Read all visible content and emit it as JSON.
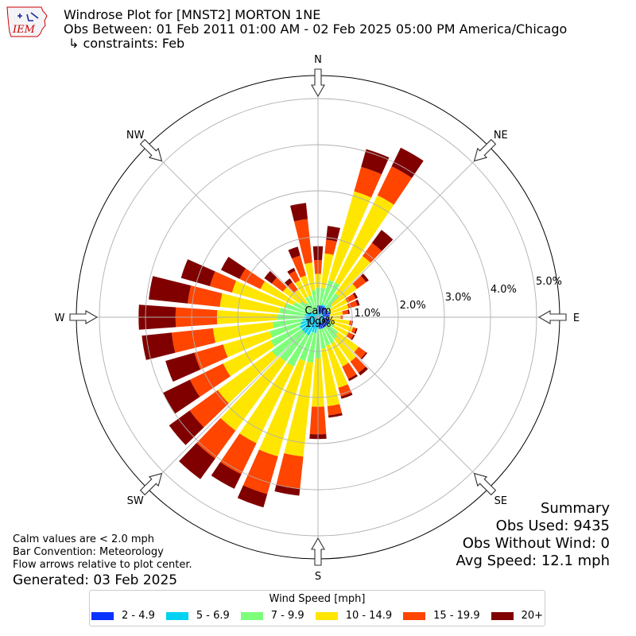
{
  "header": {
    "title": "Windrose Plot for [MNST2] MORTON 1NE",
    "subtitle": "Obs Between: 01 Feb 2011 01:00 AM - 02 Feb 2025 05:00 PM America/Chicago",
    "constraints": "↳ constraints: Feb",
    "logo_text": "IEM"
  },
  "notes": {
    "line1": "Calm values are < 2.0 mph",
    "line2": "Bar Convention: Meteorology",
    "line3": "Flow arrows relative to plot center.",
    "generated": "Generated: 03 Feb 2025"
  },
  "summary": {
    "heading": "Summary",
    "obs_used": "Obs Used: 9435",
    "obs_without_wind": "Obs Without Wind: 0",
    "avg_speed": "Avg Speed: 12.1 mph"
  },
  "legend": {
    "title": "Wind Speed [mph]"
  },
  "chart_data": {
    "type": "windrose",
    "calm_label": "Calm",
    "calm_value": "1.9%",
    "calm_percent": 1.9,
    "radial_tick_labels": [
      "0.0%",
      "1.0%",
      "2.0%",
      "3.0%",
      "4.0%",
      "5.0%"
    ],
    "radial_ticks": [
      0,
      1,
      2,
      3,
      4,
      5
    ],
    "rmax": 5.5,
    "compass_labels": [
      "N",
      "NE",
      "E",
      "SE",
      "S",
      "SW",
      "W",
      "NW"
    ],
    "speed_bins": [
      {
        "label": "2 - 4.9",
        "color": "#0a32ff"
      },
      {
        "label": "5 - 6.9",
        "color": "#00d2f0"
      },
      {
        "label": "7 - 9.9",
        "color": "#7dff7a"
      },
      {
        "label": "10 - 14.9",
        "color": "#ffe600"
      },
      {
        "label": "15 - 19.9",
        "color": "#ff4500"
      },
      {
        "label": "20+",
        "color": "#800000"
      }
    ],
    "directions": [
      0,
      10,
      20,
      30,
      40,
      50,
      60,
      70,
      80,
      90,
      100,
      110,
      120,
      130,
      140,
      150,
      160,
      170,
      180,
      190,
      200,
      210,
      220,
      230,
      240,
      250,
      260,
      270,
      280,
      290,
      300,
      310,
      320,
      330,
      340,
      350
    ],
    "cumulative_percent": [
      [
        0.15,
        0.5,
        0.9,
        1.2,
        1.5,
        1.8
      ],
      [
        0.15,
        0.5,
        0.9,
        1.65,
        1.95,
        2.25
      ],
      [
        0.15,
        0.55,
        1.1,
        3.1,
        3.65,
        4.05
      ],
      [
        0.15,
        0.55,
        1.1,
        3.2,
        3.9,
        4.35
      ],
      [
        0.15,
        0.45,
        0.9,
        1.9,
        2.25,
        2.6
      ],
      [
        0.12,
        0.35,
        0.65,
        1.3,
        1.55,
        1.62
      ],
      [
        0.1,
        0.3,
        0.55,
        0.97,
        1.17,
        1.22
      ],
      [
        0.1,
        0.3,
        0.55,
        0.95,
        1.15,
        1.2
      ],
      [
        0.1,
        0.25,
        0.5,
        0.8,
        0.92,
        0.95
      ],
      [
        0.1,
        0.25,
        0.45,
        0.75,
        0.8,
        0.8
      ],
      [
        0.1,
        0.25,
        0.5,
        0.95,
        1.0,
        1.02
      ],
      [
        0.1,
        0.3,
        0.55,
        1.05,
        1.12,
        1.15
      ],
      [
        0.1,
        0.35,
        0.65,
        1.0,
        1.12,
        1.15
      ],
      [
        0.12,
        0.4,
        0.8,
        1.35,
        1.55,
        1.58
      ],
      [
        0.12,
        0.45,
        0.85,
        1.45,
        1.75,
        1.82
      ],
      [
        0.12,
        0.45,
        0.9,
        1.45,
        1.75,
        1.8
      ],
      [
        0.12,
        0.45,
        0.9,
        1.85,
        2.05,
        2.1
      ],
      [
        0.12,
        0.45,
        0.95,
        2.2,
        2.4,
        2.45
      ],
      [
        0.12,
        0.5,
        1.15,
        2.2,
        2.8,
        2.9
      ],
      [
        0.15,
        0.6,
        1.25,
        3.3,
        4.0,
        4.15
      ],
      [
        0.15,
        0.6,
        1.25,
        3.4,
        4.25,
        4.55
      ],
      [
        0.15,
        0.7,
        1.45,
        3.3,
        4.05,
        4.4
      ],
      [
        0.15,
        0.7,
        1.45,
        3.3,
        4.05,
        4.6
      ],
      [
        0.15,
        0.7,
        1.5,
        2.95,
        3.7,
        4.25
      ],
      [
        0.15,
        0.7,
        1.4,
        2.55,
        3.35,
        4.0
      ],
      [
        0.15,
        0.65,
        1.35,
        2.4,
        3.05,
        3.7
      ],
      [
        0.15,
        0.6,
        1.25,
        2.55,
        3.45,
        4.1
      ],
      [
        0.15,
        0.55,
        1.15,
        2.45,
        3.35,
        4.15
      ],
      [
        0.15,
        0.55,
        1.1,
        2.4,
        3.1,
        3.95
      ],
      [
        0.15,
        0.5,
        1.0,
        2.2,
        2.7,
        3.35
      ],
      [
        0.15,
        0.45,
        0.85,
        1.65,
        2.15,
        2.6
      ],
      [
        0.12,
        0.4,
        0.75,
        1.2,
        1.5,
        1.7
      ],
      [
        0.1,
        0.35,
        0.65,
        1.0,
        1.2,
        1.3
      ],
      [
        0.1,
        0.35,
        0.75,
        1.15,
        1.38,
        1.45
      ],
      [
        0.1,
        0.35,
        0.75,
        1.2,
        1.65,
        1.85
      ],
      [
        0.12,
        0.4,
        0.85,
        1.45,
        2.4,
        2.75
      ]
    ]
  }
}
